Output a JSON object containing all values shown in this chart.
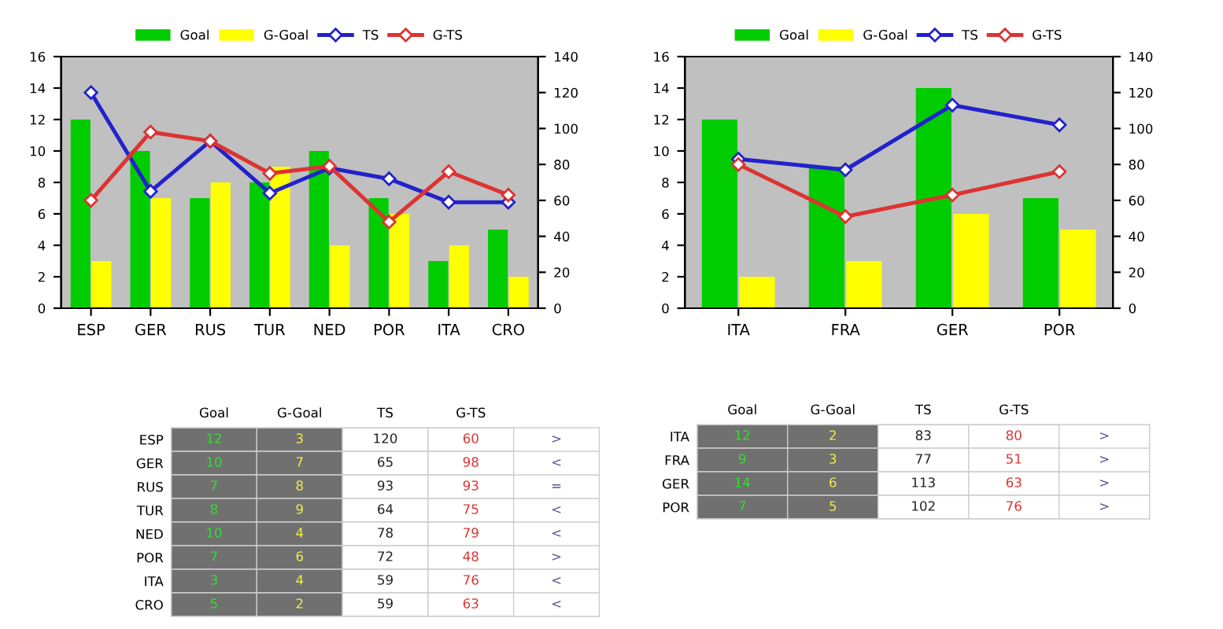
{
  "chart_data": [
    {
      "type": "bar",
      "categories": [
        "ESP",
        "GER",
        "RUS",
        "TUR",
        "NED",
        "POR",
        "ITA",
        "CRO"
      ],
      "series": [
        {
          "name": "Goal",
          "color": "#00cc00",
          "values": [
            12,
            10,
            7,
            8,
            10,
            7,
            3,
            5
          ]
        },
        {
          "name": "G-Goal",
          "color": "#ffff00",
          "values": [
            3,
            7,
            8,
            9,
            4,
            6,
            4,
            2
          ]
        },
        {
          "name": "TS",
          "type": "line",
          "axis": "y2",
          "color": "#2222cc",
          "values": [
            120,
            65,
            93,
            64,
            78,
            72,
            59,
            59
          ]
        },
        {
          "name": "G-TS",
          "type": "line",
          "axis": "y2",
          "color": "#dd3333",
          "values": [
            60,
            98,
            93,
            75,
            79,
            48,
            76,
            63
          ]
        }
      ],
      "ylim": [
        0,
        16
      ],
      "yticks": [
        0,
        2,
        4,
        6,
        8,
        10,
        12,
        14,
        16
      ],
      "y2lim": [
        0,
        140
      ],
      "y2ticks": [
        0,
        20,
        40,
        60,
        80,
        100,
        120,
        140
      ],
      "legend": "top",
      "marker": "diamond"
    },
    {
      "type": "bar",
      "categories": [
        "ITA",
        "FRA",
        "GER",
        "POR"
      ],
      "series": [
        {
          "name": "Goal",
          "color": "#00cc00",
          "values": [
            12,
            9,
            14,
            7
          ]
        },
        {
          "name": "G-Goal",
          "color": "#ffff00",
          "values": [
            2,
            3,
            6,
            5
          ]
        },
        {
          "name": "TS",
          "type": "line",
          "axis": "y2",
          "color": "#2222cc",
          "values": [
            83,
            77,
            113,
            102
          ]
        },
        {
          "name": "G-TS",
          "type": "line",
          "axis": "y2",
          "color": "#dd3333",
          "values": [
            80,
            51,
            63,
            76
          ]
        }
      ],
      "ylim": [
        0,
        16
      ],
      "yticks": [
        0,
        2,
        4,
        6,
        8,
        10,
        12,
        14,
        16
      ],
      "y2lim": [
        0,
        140
      ],
      "y2ticks": [
        0,
        20,
        40,
        60,
        80,
        100,
        120,
        140
      ],
      "legend": "top",
      "marker": "diamond"
    },
    {
      "type": "heatmap",
      "categories": [
        "Goal",
        "G-Goal",
        "TS",
        "G-TS"
      ],
      "y_categories": [
        "ESP",
        "GER",
        "RUS",
        "TUR",
        "NED",
        "POR",
        "ITA",
        "CRO"
      ],
      "cells": [
        [
          12,
          3,
          120,
          60
        ],
        [
          10,
          7,
          65,
          98
        ],
        [
          7,
          8,
          93,
          93
        ],
        [
          8,
          9,
          64,
          75
        ],
        [
          10,
          4,
          78,
          79
        ],
        [
          7,
          6,
          72,
          48
        ],
        [
          3,
          4,
          59,
          76
        ],
        [
          5,
          2,
          59,
          63
        ]
      ],
      "data_labels": true,
      "annotations": [
        ">",
        "<",
        "=",
        "<",
        "<",
        ">",
        "<",
        "<"
      ]
    },
    {
      "type": "heatmap",
      "categories": [
        "Goal",
        "G-Goal",
        "TS",
        "G-TS"
      ],
      "y_categories": [
        "ITA",
        "FRA",
        "GER",
        "POR"
      ],
      "cells": [
        [
          12,
          2,
          83,
          80
        ],
        [
          9,
          3,
          77,
          51
        ],
        [
          14,
          6,
          113,
          63
        ],
        [
          7,
          5,
          102,
          76
        ]
      ],
      "data_labels": true,
      "annotations": [
        ">",
        ">",
        ">",
        ">"
      ]
    }
  ]
}
